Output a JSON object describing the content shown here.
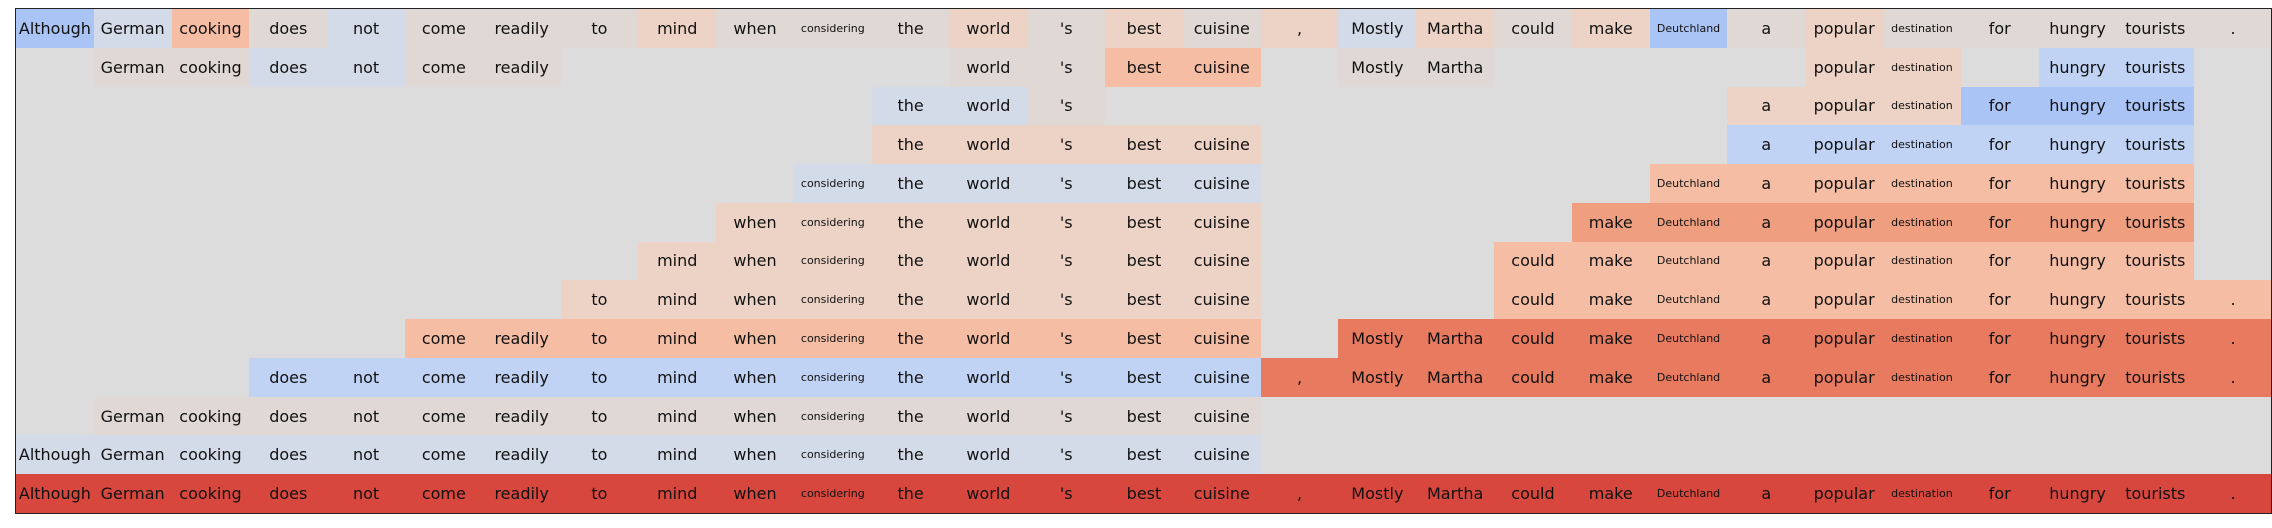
{
  "tokens": [
    "Although",
    "German",
    "cooking",
    "does",
    "not",
    "come",
    "readily",
    "to",
    "mind",
    "when",
    "considering",
    "the",
    "world",
    "'s",
    "best",
    "cuisine",
    ",",
    "Mostly",
    "Martha",
    "could",
    "make",
    "Deutchland",
    "a",
    "popular",
    "destination",
    "for",
    "hungry",
    "tourists",
    "."
  ],
  "small_tokens": [
    "considering",
    "Deutchland",
    "destination"
  ],
  "colors": {
    "background": "#dcdcdc",
    "frame": "#222222",
    "text": "#111111",
    "palette": {
      "b2": "#aac4f5",
      "b1": "#c0d3f4",
      "b0": "#d3dbe8",
      "n": "#dfd8d4",
      "o1": "#edd3c5",
      "o2": "#f5bda4",
      "o3": "#ef9f80",
      "o4": "#e87a60",
      "r5": "#d8473d"
    }
  },
  "chart_data": {
    "type": "heatmap",
    "columns": [
      "Although",
      "German",
      "cooking",
      "does",
      "not",
      "come",
      "readily",
      "to",
      "mind",
      "when",
      "considering",
      "the",
      "world",
      "'s",
      "best",
      "cuisine",
      ",",
      "Mostly",
      "Martha",
      "could",
      "make",
      "Deutchland",
      "a",
      "popular",
      "destination",
      "for",
      "hungry",
      "tourists",
      "."
    ],
    "rows": [
      {
        "cells": [
          "b2",
          "b0",
          "o2",
          "n",
          "b0",
          "n",
          "n",
          "n",
          "o1",
          "n",
          "n",
          "n",
          "o1",
          "n",
          "o1",
          "n",
          "o1",
          "b0",
          "o1",
          "n",
          "o1",
          "b2",
          "n",
          "o1",
          "n",
          "n",
          "n",
          "n",
          "n"
        ]
      },
      {
        "cells": [
          null,
          "n",
          "n",
          "b0",
          "b0",
          "n",
          "n",
          null,
          null,
          null,
          null,
          null,
          "n",
          "n",
          "o2",
          "o2",
          null,
          "n",
          "n",
          null,
          null,
          null,
          null,
          "o1",
          "o1",
          null,
          "b1",
          "b1",
          null
        ]
      },
      {
        "cells": [
          null,
          null,
          null,
          null,
          null,
          null,
          null,
          null,
          null,
          null,
          null,
          "b0",
          "b0",
          "n",
          null,
          null,
          null,
          null,
          null,
          null,
          null,
          null,
          "o1",
          "o1",
          "o1",
          "b2",
          "b2",
          "b2",
          null
        ]
      },
      {
        "cells": [
          null,
          null,
          null,
          null,
          null,
          null,
          null,
          null,
          null,
          null,
          null,
          "o1",
          "o1",
          "o1",
          "o1",
          "o1",
          null,
          null,
          null,
          null,
          null,
          null,
          "b1",
          "b1",
          "b1",
          "b1",
          "b1",
          "b1",
          null
        ]
      },
      {
        "cells": [
          null,
          null,
          null,
          null,
          null,
          null,
          null,
          null,
          null,
          null,
          "b0",
          "b0",
          "b0",
          "b0",
          "b0",
          "b0",
          null,
          null,
          null,
          null,
          null,
          "o2",
          "o2",
          "o2",
          "o2",
          "o2",
          "o2",
          "o2",
          null
        ]
      },
      {
        "cells": [
          null,
          null,
          null,
          null,
          null,
          null,
          null,
          null,
          null,
          "o1",
          "o1",
          "o1",
          "o1",
          "o1",
          "o1",
          "o1",
          null,
          null,
          null,
          null,
          "o3",
          "o3",
          "o3",
          "o3",
          "o3",
          "o3",
          "o3",
          "o3",
          null
        ]
      },
      {
        "cells": [
          null,
          null,
          null,
          null,
          null,
          null,
          null,
          null,
          "o1",
          "o1",
          "o1",
          "o1",
          "o1",
          "o1",
          "o1",
          "o1",
          null,
          null,
          null,
          "o2",
          "o2",
          "o2",
          "o2",
          "o2",
          "o2",
          "o2",
          "o2",
          "o2",
          null
        ]
      },
      {
        "cells": [
          null,
          null,
          null,
          null,
          null,
          null,
          null,
          "o1",
          "o1",
          "o1",
          "o1",
          "o1",
          "o1",
          "o1",
          "o1",
          "o1",
          null,
          null,
          null,
          "o2",
          "o2",
          "o2",
          "o2",
          "o2",
          "o2",
          "o2",
          "o2",
          "o2",
          "o2"
        ]
      },
      {
        "cells": [
          null,
          null,
          null,
          null,
          null,
          "o2",
          "o2",
          "o2",
          "o2",
          "o2",
          "o2",
          "o2",
          "o2",
          "o2",
          "o2",
          "o2",
          null,
          "o4",
          "o4",
          "o4",
          "o4",
          "o4",
          "o4",
          "o4",
          "o4",
          "o4",
          "o4",
          "o4",
          "o4"
        ]
      },
      {
        "cells": [
          null,
          null,
          null,
          "b1",
          "b1",
          "b1",
          "b1",
          "b1",
          "b1",
          "b1",
          "b1",
          "b1",
          "b1",
          "b1",
          "b1",
          "b1",
          "o4",
          "o4",
          "o4",
          "o4",
          "o4",
          "o4",
          "o4",
          "o4",
          "o4",
          "o4",
          "o4",
          "o4",
          "o4"
        ]
      },
      {
        "cells": [
          null,
          "n",
          "n",
          "n",
          "n",
          "n",
          "n",
          "n",
          "n",
          "n",
          "n",
          "n",
          "n",
          "n",
          "n",
          "n",
          null,
          null,
          null,
          null,
          null,
          null,
          null,
          null,
          null,
          null,
          null,
          null,
          null
        ]
      },
      {
        "cells": [
          "b0",
          "b0",
          "b0",
          "b0",
          "b0",
          "b0",
          "b0",
          "b0",
          "b0",
          "b0",
          "b0",
          "b0",
          "b0",
          "b0",
          "b0",
          "b0",
          null,
          null,
          null,
          null,
          null,
          null,
          null,
          null,
          null,
          null,
          null,
          null,
          null
        ]
      },
      {
        "cells": [
          "r5",
          "r5",
          "r5",
          "r5",
          "r5",
          "r5",
          "r5",
          "r5",
          "r5",
          "r5",
          "r5",
          "r5",
          "r5",
          "r5",
          "r5",
          "r5",
          "r5",
          "r5",
          "r5",
          "r5",
          "r5",
          "r5",
          "r5",
          "r5",
          "r5",
          "r5",
          "r5",
          "r5",
          "r5"
        ]
      }
    ]
  }
}
